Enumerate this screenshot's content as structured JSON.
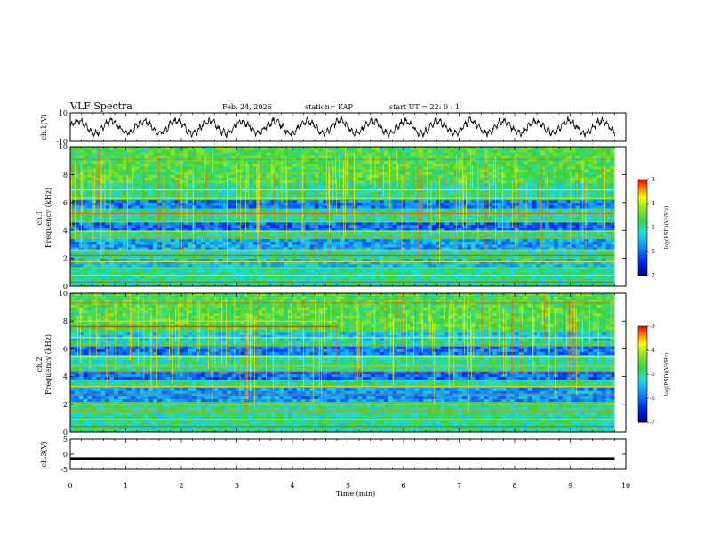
{
  "header": {
    "title": "VLF Spectra",
    "date": "Feb. 24, 2026",
    "station": "station= KAP",
    "start": "start  UT =   22: 0   : 1"
  },
  "chart_data": [
    {
      "type": "line",
      "title": "ch.1 waveform",
      "ylabel": "ch.1(V)",
      "ylim": [
        -10,
        10
      ],
      "yticks": [
        "10",
        "-10"
      ],
      "xlim": [
        0,
        10
      ],
      "description": "oscillating signal, amplitude roughly +/-7 V"
    },
    {
      "type": "heatmap",
      "title": "ch.1 spectrogram",
      "ylabel": "ch.1 Frequency (kHz)",
      "ylabel_lines": [
        "ch.1",
        "Frequency (kHz)"
      ],
      "ylim": [
        0,
        10
      ],
      "yticks": [
        "0",
        "2",
        "4",
        "6",
        "8",
        "10"
      ],
      "xlim": [
        0,
        10
      ],
      "data_extent_min": 9.8,
      "colorbar": {
        "label": "log(PSD)(V²/Hz)",
        "range": [
          -7,
          -3
        ],
        "ticks": [
          "-3",
          "-4",
          "-5",
          "-6",
          "-7"
        ]
      }
    },
    {
      "type": "heatmap",
      "title": "ch.2 spectrogram",
      "ylabel": "ch.2 Frequency (kHz)",
      "ylabel_lines": [
        "ch.2",
        "Frequency (kHz)"
      ],
      "ylim": [
        0,
        10
      ],
      "yticks": [
        "0",
        "2",
        "4",
        "6",
        "8",
        "10"
      ],
      "xlim": [
        0,
        10
      ],
      "data_extent_min": 9.8,
      "colorbar": {
        "label": "log(PSD)(V²/Hz)",
        "range": [
          -7,
          -3
        ],
        "ticks": [
          "-3",
          "-4",
          "-5",
          "-6",
          "-7"
        ]
      }
    },
    {
      "type": "line",
      "title": "ch.3 waveform",
      "ylabel": "ch.3(V)",
      "ylim": [
        -5,
        5
      ],
      "yticks": [
        "5",
        "0",
        "-5"
      ],
      "xlim": [
        0,
        10
      ],
      "description": "flat band near -1.5 V with small thickness"
    }
  ],
  "x_axis": {
    "label": "Time  (min)",
    "ticks": [
      "0",
      "1",
      "2",
      "3",
      "4",
      "5",
      "6",
      "7",
      "8",
      "9",
      "10"
    ]
  },
  "colors": {
    "low": "#0000b4",
    "mid_blue": "#14a0ff",
    "cyan": "#18e0e0",
    "green": "#3cd23c",
    "yellow": "#ffff00",
    "red": "#ff0000",
    "white": "#ffffff"
  }
}
